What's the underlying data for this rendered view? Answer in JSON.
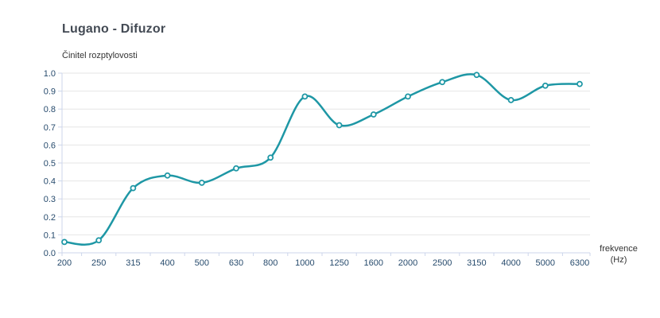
{
  "page": {
    "title": "Lugano - Difuzor"
  },
  "chart_data": {
    "type": "line",
    "subtype": "spline-with-markers",
    "title": "Lugano - Difuzor",
    "xlabel": "frekvence (Hz)",
    "xlabel_lines": [
      "frekvence",
      "(Hz)"
    ],
    "ylabel": "Činitel rozptylovosti",
    "categories": [
      "200",
      "250",
      "315",
      "400",
      "500",
      "630",
      "800",
      "1000",
      "1250",
      "1600",
      "2000",
      "2500",
      "3150",
      "4000",
      "5000",
      "6300"
    ],
    "values": [
      0.06,
      0.07,
      0.36,
      0.43,
      0.39,
      0.47,
      0.53,
      0.87,
      0.71,
      0.77,
      0.87,
      0.95,
      0.99,
      0.85,
      0.93,
      0.94
    ],
    "ylim": [
      0,
      1
    ],
    "ytick_step": 0.1,
    "yticks": [
      "0.0",
      "0.1",
      "0.2",
      "0.3",
      "0.4",
      "0.5",
      "0.6",
      "0.7",
      "0.8",
      "0.9",
      "1.0"
    ],
    "grid": "horizontal",
    "legend": "none",
    "colors": {
      "line": "#1e97a5",
      "marker_fill": "#ffffff",
      "marker_stroke": "#1e97a5",
      "gridline": "#e6e6e6",
      "axis_line": "#ccd6eb",
      "tick_label": "#274b6d",
      "title": "#434a54",
      "axis_title": "#333333",
      "background": "#ffffff"
    }
  }
}
